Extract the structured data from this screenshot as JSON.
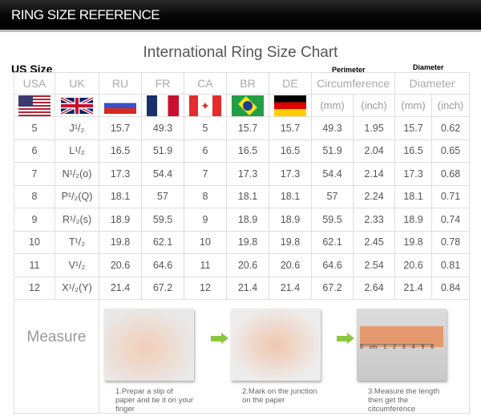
{
  "header": {
    "title": "RING SIZE REFERENCE"
  },
  "chart_title": "International Ring Size Chart",
  "us_size_label": "US Size",
  "perimeter_label": "Perimeter",
  "diameter_label": "Diameter",
  "columns": [
    "USA",
    "UK",
    "RU",
    "FR",
    "CA",
    "BR",
    "DE"
  ],
  "circumference_header": "Circumference",
  "diameter_header": "Diameter",
  "units": [
    "(mm)",
    "(inch)",
    "(mm)",
    "(inch)"
  ],
  "flags": [
    "us-flag",
    "uk-flag",
    "russia-flag",
    "france-flag",
    "canada-flag",
    "brazil-flag",
    "germany-flag"
  ],
  "rows": [
    [
      "5",
      "J¹/₂",
      "15.7",
      "49.3",
      "5",
      "15.7",
      "15.7",
      "49.3",
      "1.95",
      "15.7",
      "0.62"
    ],
    [
      "6",
      "L¹/₂",
      "16.5",
      "51.9",
      "6",
      "16.5",
      "16.5",
      "51.9",
      "2.04",
      "16.5",
      "0.65"
    ],
    [
      "7",
      "N¹/₂(o)",
      "17.3",
      "54.4",
      "7",
      "17.3",
      "17.3",
      "54.4",
      "2.14",
      "17.3",
      "0.68"
    ],
    [
      "8",
      "P¹/₂(Q)",
      "18.1",
      "57",
      "8",
      "18.1",
      "18.1",
      "57",
      "2.24",
      "18.1",
      "0.71"
    ],
    [
      "9",
      "R¹/₂(s)",
      "18.9",
      "59.5",
      "9",
      "18.9",
      "18.9",
      "59.5",
      "2.33",
      "18.9",
      "0.74"
    ],
    [
      "10",
      "T¹/₂",
      "19.8",
      "62.1",
      "10",
      "19.8",
      "19.8",
      "62.1",
      "2.45",
      "19.8",
      "0.78"
    ],
    [
      "11",
      "V¹/₂",
      "20.6",
      "64.6",
      "11",
      "20.6",
      "20.6",
      "64.6",
      "2.54",
      "20.6",
      "0.81"
    ],
    [
      "12",
      "X¹/₂(Y)",
      "21.4",
      "67.2",
      "12",
      "21.4",
      "21.4",
      "67.2",
      "2.64",
      "21.4",
      "0.84"
    ]
  ],
  "measure": {
    "label": "Measure",
    "steps": [
      "1.Prepar a slip of paper and tie it on your finger",
      "2.Mark on the junction on the paper",
      "3.Measure the length then get the citcumference"
    ],
    "ruler": "0 cm 1 2 3 4 5 6"
  },
  "colors": {
    "arrow": "#8cc63f",
    "grid": "#dddddd"
  }
}
